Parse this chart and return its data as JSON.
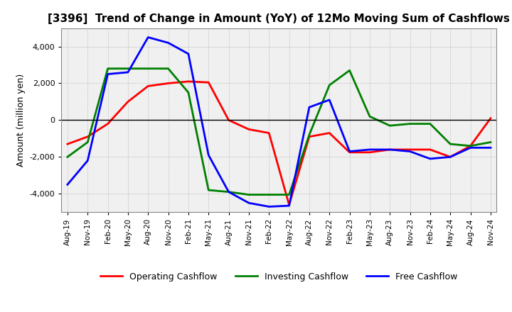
{
  "title": "[3396]  Trend of Change in Amount (YoY) of 12Mo Moving Sum of Cashflows",
  "ylabel": "Amount (million yen)",
  "ylim": [
    -5000,
    5000
  ],
  "yticks": [
    -4000,
    -2000,
    0,
    2000,
    4000
  ],
  "x_labels": [
    "Aug-19",
    "Nov-19",
    "Feb-20",
    "May-20",
    "Aug-20",
    "Nov-20",
    "Feb-21",
    "May-21",
    "Aug-21",
    "Nov-21",
    "Feb-22",
    "May-22",
    "Aug-22",
    "Nov-22",
    "Feb-23",
    "May-23",
    "Aug-23",
    "Nov-23",
    "Feb-24",
    "May-24",
    "Aug-24",
    "Nov-24"
  ],
  "operating": [
    -1300,
    -900,
    -200,
    1000,
    1850,
    2000,
    2100,
    2050,
    0,
    -500,
    -700,
    -4600,
    -900,
    -700,
    -1750,
    -1750,
    -1600,
    -1600,
    -1600,
    -2000,
    -1400,
    100
  ],
  "investing": [
    -2000,
    -1200,
    2800,
    2800,
    2800,
    2800,
    1500,
    -3800,
    -3900,
    -4050,
    -4050,
    -4050,
    -800,
    1900,
    2700,
    200,
    -300,
    -200,
    -200,
    -1300,
    -1400,
    -1200
  ],
  "free": [
    -3500,
    -2200,
    2500,
    2600,
    4500,
    4200,
    3600,
    -1900,
    -3900,
    -4500,
    -4700,
    -4650,
    700,
    1100,
    -1700,
    -1600,
    -1600,
    -1700,
    -2100,
    -2000,
    -1500,
    -1500
  ],
  "operating_color": "#ff0000",
  "investing_color": "#008000",
  "free_color": "#0000ff",
  "background_color": "#ffffff",
  "plot_bg_color": "#f0f0f0",
  "grid_color": "#aaaaaa"
}
